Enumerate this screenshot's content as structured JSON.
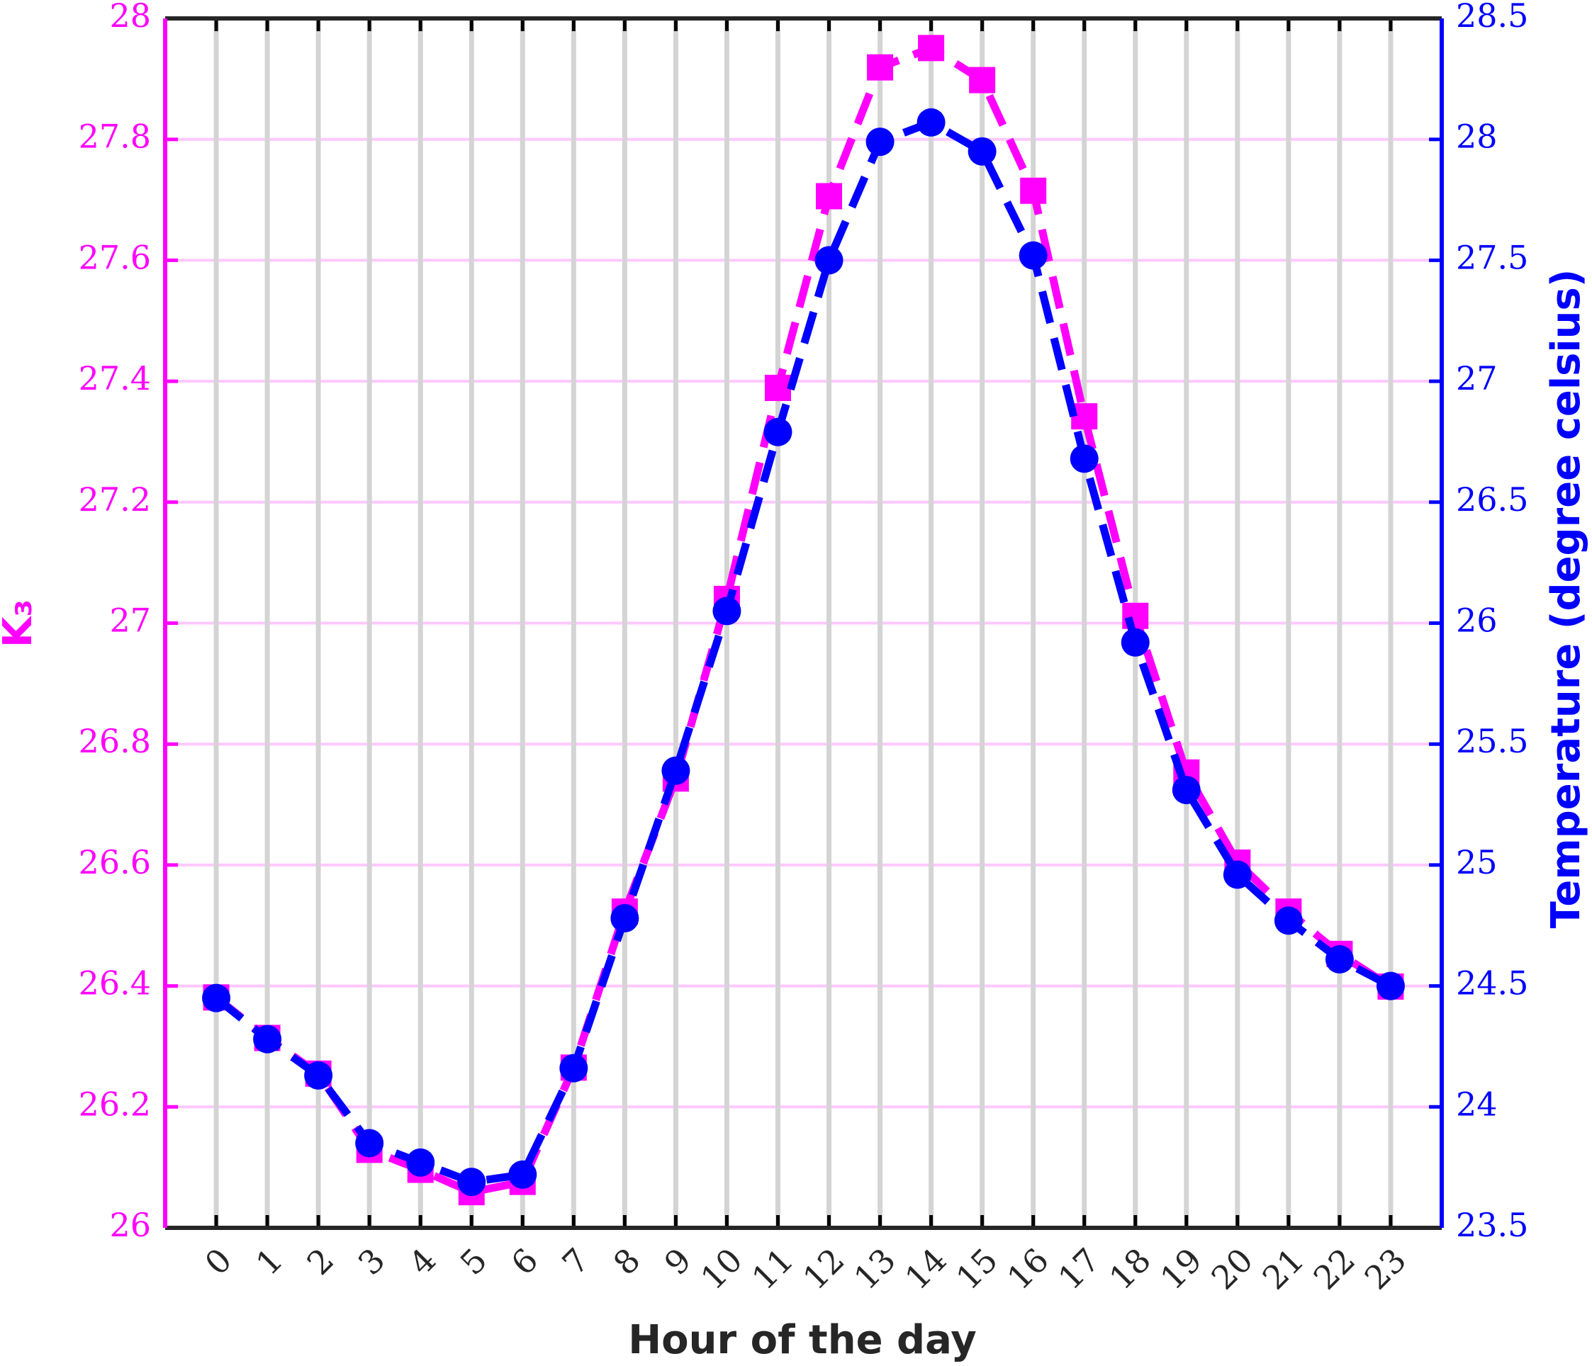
{
  "chart_data": {
    "type": "line",
    "xlabel": "Hour of the day",
    "ylabel": "K₃",
    "y2label": "Temperature (degree celsius)",
    "x": [
      0,
      1,
      2,
      3,
      4,
      5,
      6,
      7,
      8,
      9,
      10,
      11,
      12,
      13,
      14,
      15,
      16,
      17,
      18,
      19,
      20,
      21,
      22,
      23
    ],
    "xlim": [
      -1,
      24
    ],
    "xticks": [
      0,
      1,
      2,
      3,
      4,
      5,
      6,
      7,
      8,
      9,
      10,
      11,
      12,
      13,
      14,
      15,
      16,
      17,
      18,
      19,
      20,
      21,
      22,
      23
    ],
    "ylim": [
      26,
      28
    ],
    "yticks": [
      26,
      26.2,
      26.4,
      26.6,
      26.8,
      27,
      27.2,
      27.4,
      27.6,
      27.8,
      28
    ],
    "y2lim": [
      23.5,
      28.5
    ],
    "y2ticks": [
      23.5,
      24,
      24.5,
      25,
      25.5,
      26,
      26.5,
      27,
      27.5,
      28,
      28.5
    ],
    "grid": true,
    "series": [
      {
        "name": "K3",
        "color": "#ff00ff",
        "marker": "square",
        "values": [
          26.381,
          26.314,
          26.255,
          26.129,
          26.096,
          26.059,
          26.076,
          26.265,
          26.523,
          26.743,
          27.04,
          27.389,
          27.706,
          27.919,
          27.951,
          27.898,
          27.715,
          27.342,
          27.012,
          26.753,
          26.604,
          26.523,
          26.453,
          26.399
        ]
      },
      {
        "name": "Temperature",
        "color": "#0000ff",
        "marker": "circle",
        "axis": "y2",
        "values": [
          24.45,
          24.28,
          24.13,
          23.85,
          23.77,
          23.69,
          23.72,
          24.16,
          24.78,
          25.39,
          26.05,
          26.79,
          27.5,
          27.99,
          28.07,
          27.95,
          27.52,
          26.68,
          25.92,
          25.31,
          24.96,
          24.77,
          24.61,
          24.5
        ]
      }
    ]
  }
}
